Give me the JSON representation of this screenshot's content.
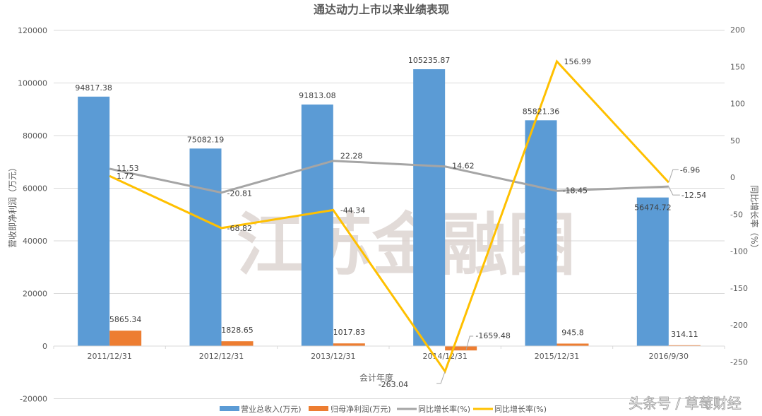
{
  "chart_data": {
    "type": "bar",
    "title": "通达动力上市以来业绩表现",
    "xlabel": "会计年度",
    "ylabel": "营收即净利润（万元）",
    "y2label": "同比增长率（%）",
    "ylim": [
      -20000,
      120000
    ],
    "y2lim": [
      -250,
      200
    ],
    "yticks": [
      120000,
      100000,
      80000,
      60000,
      40000,
      20000,
      0,
      -20000
    ],
    "y2ticks": [
      200,
      150,
      100,
      50,
      0,
      -50,
      -100,
      -150,
      -200,
      -250
    ],
    "grid": true,
    "legend_position": "bottom",
    "categories": [
      "2011/12/31",
      "2012/12/31",
      "2013/12/31",
      "2014/12/31",
      "2015/12/31",
      "2016/9/30"
    ],
    "series": [
      {
        "name": "营业总收入(万元)",
        "type": "bar",
        "axis": "left",
        "color": "#5b9bd5",
        "values": [
          94817.38,
          75082.19,
          91813.08,
          105235.87,
          85821.36,
          56474.72
        ]
      },
      {
        "name": "归母净利润(万元)",
        "type": "bar",
        "axis": "left",
        "color": "#ed7d31",
        "values": [
          5865.34,
          1828.65,
          1017.83,
          -1659.48,
          945.8,
          314.11
        ]
      },
      {
        "name": "同比增长率(%)",
        "type": "line",
        "axis": "right",
        "color": "#a5a5a5",
        "values": [
          11.53,
          -20.81,
          22.28,
          14.62,
          -18.45,
          -12.54
        ]
      },
      {
        "name": "同比增长率(%)",
        "type": "line",
        "axis": "right",
        "color": "#ffc000",
        "values": [
          1.72,
          -68.82,
          -44.34,
          -263.04,
          156.99,
          -6.96
        ]
      }
    ]
  },
  "watermark": "江苏金融圈",
  "footer": "头条号 / 草莓财经"
}
